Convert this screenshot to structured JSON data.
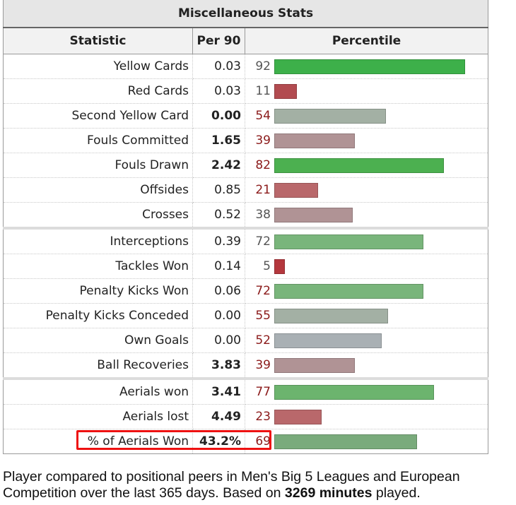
{
  "table": {
    "caption": "Miscellaneous Stats",
    "headers": {
      "statistic": "Statistic",
      "per90": "Per 90",
      "percentile": "Percentile"
    },
    "rows": [
      {
        "statistic": "Yellow Cards",
        "per90": "0.03",
        "percentile": "92",
        "pct_value": 92,
        "bar_color": "#3db04a",
        "num_color": "#555555",
        "bold": false,
        "group_start": false
      },
      {
        "statistic": "Red Cards",
        "per90": "0.03",
        "percentile": "11",
        "pct_value": 11,
        "bar_color": "#b24b50",
        "num_color": "#555555",
        "bold": false,
        "group_start": false
      },
      {
        "statistic": "Second Yellow Card",
        "per90": "0.00",
        "percentile": "54",
        "pct_value": 54,
        "bar_color": "#a3b0a4",
        "num_color": "#8b1a1a",
        "bold": true,
        "group_start": false
      },
      {
        "statistic": "Fouls Committed",
        "per90": "1.65",
        "percentile": "39",
        "pct_value": 39,
        "bar_color": "#b09395",
        "num_color": "#8b1a1a",
        "bold": true,
        "group_start": false
      },
      {
        "statistic": "Fouls Drawn",
        "per90": "2.42",
        "percentile": "82",
        "pct_value": 82,
        "bar_color": "#4cb050",
        "num_color": "#8b1a1a",
        "bold": true,
        "group_start": false
      },
      {
        "statistic": "Offsides",
        "per90": "0.85",
        "percentile": "21",
        "pct_value": 21,
        "bar_color": "#b9686b",
        "num_color": "#8b1a1a",
        "bold": false,
        "group_start": false
      },
      {
        "statistic": "Crosses",
        "per90": "0.52",
        "percentile": "38",
        "pct_value": 38,
        "bar_color": "#b09395",
        "num_color": "#555555",
        "bold": false,
        "group_start": false
      },
      {
        "statistic": "Interceptions",
        "per90": "0.39",
        "percentile": "72",
        "pct_value": 72,
        "bar_color": "#79b57b",
        "num_color": "#555555",
        "bold": false,
        "group_start": true
      },
      {
        "statistic": "Tackles Won",
        "per90": "0.14",
        "percentile": "5",
        "pct_value": 5,
        "bar_color": "#b4373d",
        "num_color": "#555555",
        "bold": false,
        "group_start": false
      },
      {
        "statistic": "Penalty Kicks Won",
        "per90": "0.06",
        "percentile": "72",
        "pct_value": 72,
        "bar_color": "#79b57b",
        "num_color": "#8b1a1a",
        "bold": false,
        "group_start": false
      },
      {
        "statistic": "Penalty Kicks Conceded",
        "per90": "0.00",
        "percentile": "55",
        "pct_value": 55,
        "bar_color": "#a3b0a4",
        "num_color": "#8b1a1a",
        "bold": false,
        "group_start": false
      },
      {
        "statistic": "Own Goals",
        "per90": "0.00",
        "percentile": "52",
        "pct_value": 52,
        "bar_color": "#a9b0b4",
        "num_color": "#8b1a1a",
        "bold": false,
        "group_start": false
      },
      {
        "statistic": "Ball Recoveries",
        "per90": "3.83",
        "percentile": "39",
        "pct_value": 39,
        "bar_color": "#b09395",
        "num_color": "#8b1a1a",
        "bold": true,
        "group_start": false
      },
      {
        "statistic": "Aerials won",
        "per90": "3.41",
        "percentile": "77",
        "pct_value": 77,
        "bar_color": "#6cb46e",
        "num_color": "#8b1a1a",
        "bold": true,
        "group_start": true
      },
      {
        "statistic": "Aerials lost",
        "per90": "4.49",
        "percentile": "23",
        "pct_value": 23,
        "bar_color": "#b9686b",
        "num_color": "#8b1a1a",
        "bold": true,
        "group_start": false
      },
      {
        "statistic": "% of Aerials Won",
        "per90": "43.2%",
        "percentile": "69",
        "pct_value": 69,
        "bar_color": "#7aab7c",
        "num_color": "#8b1a1a",
        "bold": true,
        "group_start": false
      }
    ]
  },
  "footnote": {
    "text_before": "Player compared to positional peers in Men's Big 5 Leagues and European Competition over the last 365 days. Based on ",
    "minutes": "3269 minutes",
    "text_after": " played."
  }
}
